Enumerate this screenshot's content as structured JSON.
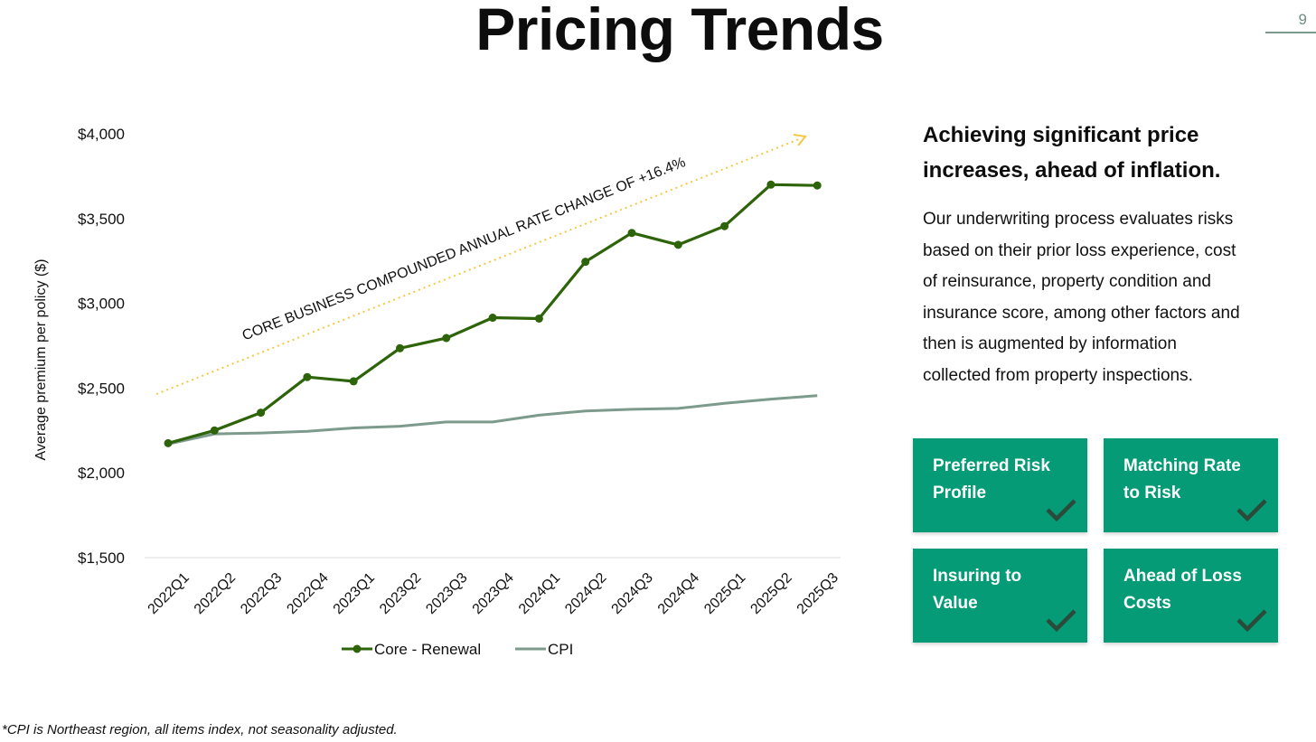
{
  "page": {
    "title": "Pricing Trends",
    "page_number": "9",
    "footnote": "*CPI is Northeast region, all items index, not seasonality adjusted."
  },
  "chart_data": {
    "type": "line",
    "categories": [
      "2022Q1",
      "2022Q2",
      "2022Q3",
      "2022Q4",
      "2023Q1",
      "2023Q2",
      "2023Q3",
      "2023Q4",
      "2024Q1",
      "2024Q2",
      "2024Q3",
      "2024Q4",
      "2025Q1",
      "2025Q2",
      "2025Q3"
    ],
    "series": [
      {
        "name": "Core - Renewal",
        "color": "#2e6409",
        "marker": "circle",
        "values": [
          2175,
          2250,
          2355,
          2565,
          2540,
          2735,
          2795,
          2915,
          2910,
          3245,
          3415,
          3345,
          3455,
          3700,
          3695
        ]
      },
      {
        "name": "CPI",
        "color": "#7d9b8d",
        "marker": "none",
        "values": [
          2170,
          2230,
          2235,
          2245,
          2265,
          2275,
          2300,
          2300,
          2340,
          2365,
          2375,
          2380,
          2410,
          2435,
          2455
        ]
      }
    ],
    "yticks": [
      "$1,500",
      "$2,000",
      "$2,500",
      "$3,000",
      "$3,500",
      "$4,000"
    ],
    "ylabel": "Average premium per policy ($)",
    "xlabel": "",
    "ylim": [
      1500,
      4000
    ],
    "grid": false,
    "legend_position": "bottom",
    "annotation": {
      "text": "CORE BUSINESS COMPOUNDED ANNUAL RATE CHANGE OF +16.4%",
      "arrow_color": "#f5c842"
    }
  },
  "side": {
    "heading_line1": "Achieving significant price",
    "heading_line2": "increases, ahead of inflation.",
    "body_lines": [
      "Our underwriting process evaluates risks",
      "based on their prior loss experience, cost",
      "of reinsurance, property condition and",
      "insurance score, among other factors and",
      "then is augmented by information",
      "collected from property inspections."
    ]
  },
  "cards": [
    {
      "line1": "Preferred Risk",
      "line2": "Profile",
      "icon": "check-icon"
    },
    {
      "line1": "Matching Rate",
      "line2": "to Risk",
      "icon": "check-icon"
    },
    {
      "line1": "Insuring to",
      "line2": "Value",
      "icon": "check-icon"
    },
    {
      "line1": "Ahead of Loss",
      "line2": "Costs",
      "icon": "check-icon"
    }
  ],
  "colors": {
    "card_bg": "#049b76",
    "check": "#2b4a3a"
  }
}
